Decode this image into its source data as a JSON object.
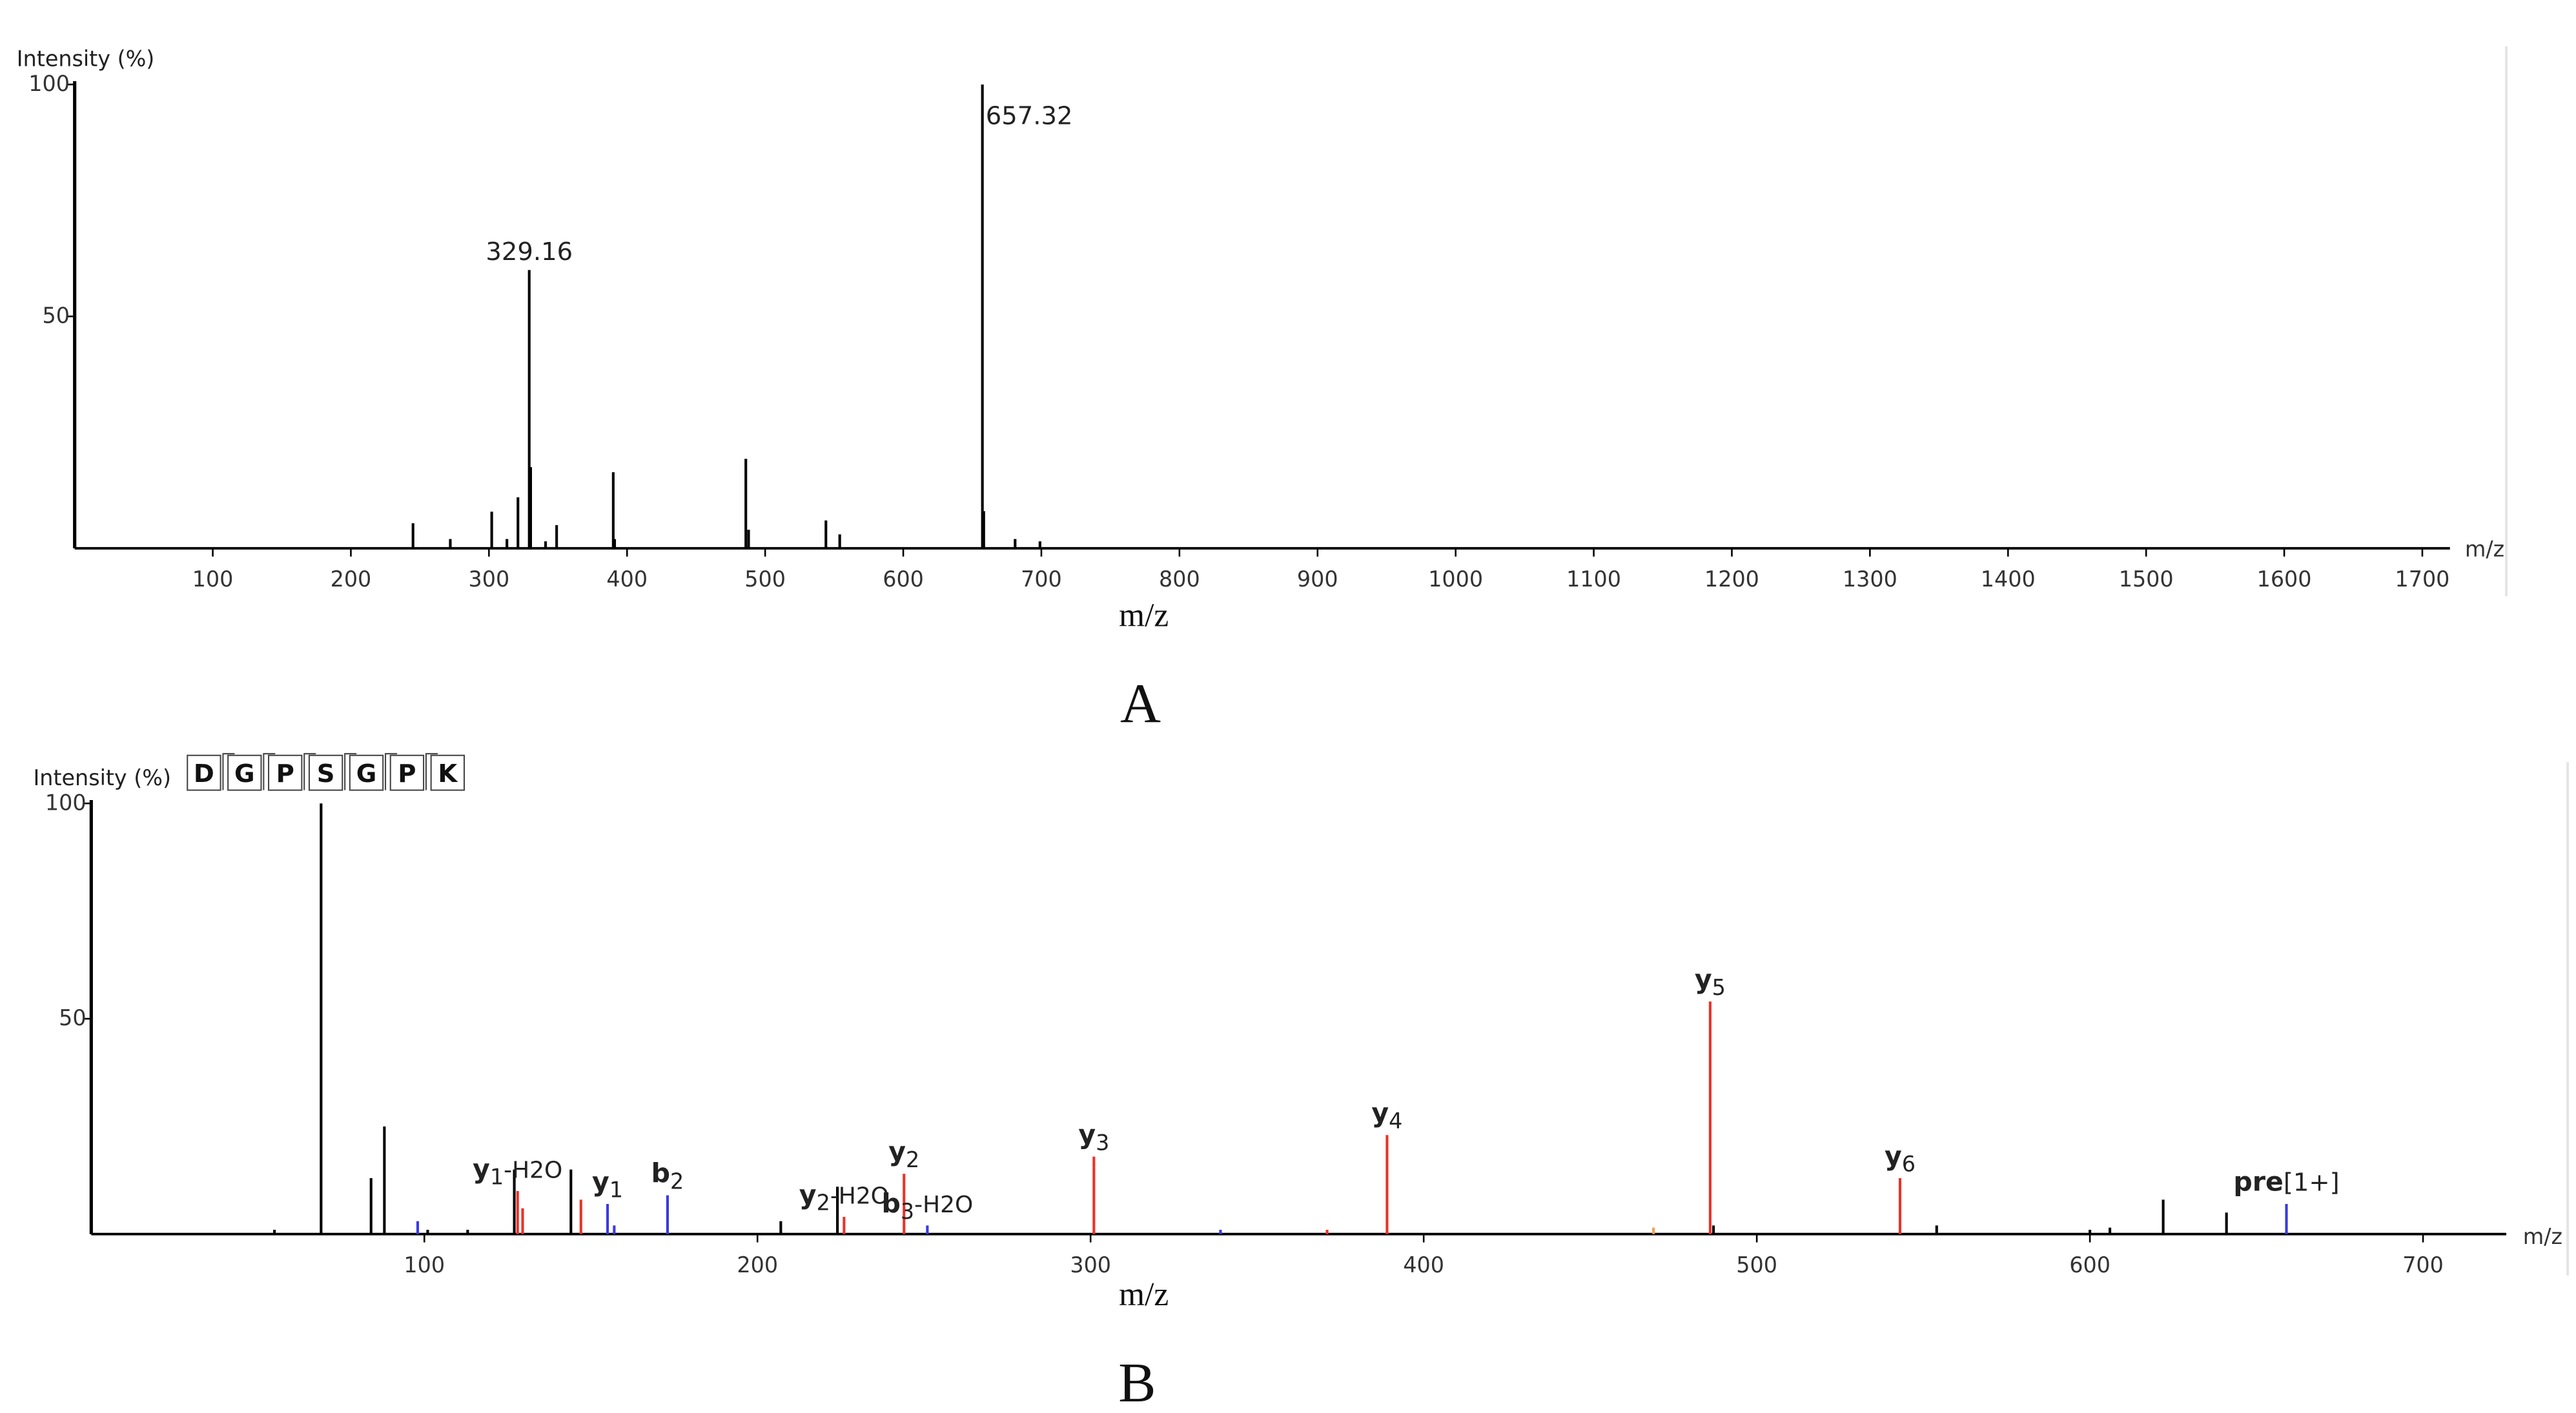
{
  "chart_data": [
    {
      "type": "stem",
      "y_label": "Intensity (%)",
      "x_label": "m/z",
      "x_axis_end_label": "m/z",
      "panel_label": "A",
      "xlim": [
        0,
        1720
      ],
      "xticks": [
        100,
        200,
        300,
        400,
        500,
        600,
        700,
        800,
        900,
        1000,
        1100,
        1200,
        1300,
        1400,
        1500,
        1600,
        1700
      ],
      "ylim": [
        0,
        100
      ],
      "yticks": [
        50,
        100
      ],
      "series": [
        {
          "color": "#000000",
          "x": [
            245,
            272,
            302,
            313,
            321,
            329.16,
            330.2,
            341,
            349,
            390,
            391,
            486,
            488,
            544,
            554,
            657.32,
            658.3,
            681,
            699
          ],
          "values": [
            5.4,
            2,
            7.9,
            2,
            11,
            60,
            17.5,
            1.5,
            5,
            16.4,
            2,
            19.3,
            4,
            6,
            3,
            100,
            8,
            2,
            1.5
          ],
          "labels": [
            null,
            null,
            null,
            null,
            null,
            "329.16",
            null,
            null,
            null,
            null,
            null,
            null,
            null,
            null,
            null,
            "657.32",
            null,
            null,
            null
          ]
        }
      ]
    },
    {
      "type": "stem",
      "y_label": "Intensity (%)",
      "x_label": "m/z",
      "x_axis_end_label": "m/z",
      "panel_label": "B",
      "sequence": [
        "D",
        "G",
        "P",
        "S",
        "G",
        "P",
        "K"
      ],
      "xlim": [
        0,
        725
      ],
      "xticks": [
        100,
        200,
        300,
        400,
        500,
        600,
        700
      ],
      "ylim": [
        0,
        100
      ],
      "yticks": [
        50,
        100
      ],
      "series": [
        {
          "color": "#000000",
          "x": [
            55,
            69,
            84,
            88,
            101,
            113,
            127,
            144,
            207,
            224,
            487,
            554,
            600,
            606,
            622,
            641
          ],
          "values": [
            1,
            100,
            13,
            25,
            1,
            1,
            15,
            15,
            3,
            11,
            2,
            2,
            1,
            1.5,
            8,
            5
          ],
          "labels": [
            null,
            null,
            null,
            null,
            null,
            null,
            null,
            null,
            null,
            null,
            null,
            null,
            null,
            null,
            null,
            null
          ]
        },
        {
          "color": "#e8332a",
          "x": [
            128,
            129.5,
            147,
            226,
            244,
            301,
            371,
            389,
            486,
            543
          ],
          "values": [
            10,
            6,
            8,
            4,
            14,
            18,
            1,
            23,
            54,
            13
          ],
          "labels": [
            {
              "ion": "y",
              "sub": "1",
              "loss": "-H2O"
            },
            null,
            null,
            {
              "ion": "y",
              "sub": "2",
              "loss": "-H2O"
            },
            {
              "ion": "y",
              "sub": "2"
            },
            {
              "ion": "y",
              "sub": "3"
            },
            null,
            {
              "ion": "y",
              "sub": "4"
            },
            {
              "ion": "y",
              "sub": "5"
            },
            {
              "ion": "y",
              "sub": "6"
            }
          ]
        },
        {
          "color": "#3a3adf",
          "x": [
            98,
            155,
            157,
            173,
            251,
            339,
            659
          ],
          "values": [
            3,
            7,
            2,
            9,
            2,
            1,
            7
          ],
          "labels": [
            null,
            {
              "ion": "y",
              "sub": "1"
            },
            null,
            {
              "ion": "b",
              "sub": "2"
            },
            {
              "ion": "b",
              "sub": "3",
              "loss": "-H2O"
            },
            null,
            {
              "ion": "pre",
              "charge": "[1+]"
            }
          ]
        },
        {
          "color": "#f0a050",
          "x": [
            469
          ],
          "values": [
            1.5
          ],
          "labels": [
            null
          ]
        }
      ]
    }
  ]
}
